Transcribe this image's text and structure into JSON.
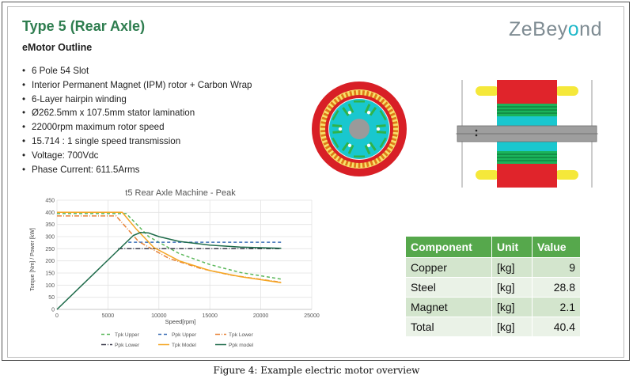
{
  "slide": {
    "title": "Type 5 (Rear Axle)",
    "subtitle": "eMotor Outline",
    "logo_prefix": "ZeBey",
    "logo_o": "o",
    "logo_suffix": "nd",
    "logo_accent": "#1fb8c9",
    "title_color": "#2e7d4f",
    "specs": [
      "6 Pole 54 Slot",
      "Interior Permanent Magnet (IPM) rotor + Carbon Wrap",
      "6-Layer hairpin winding",
      "Ø262.5mm x 107.5mm stator lamination",
      "22000rpm maximum rotor speed",
      "15.714 : 1 single speed transmission",
      "Voltage: 700Vdc",
      "Phase Current: 611.5Arms"
    ]
  },
  "component_table": {
    "headers": [
      "Component",
      "Unit",
      "Value"
    ],
    "rows": [
      {
        "component": "Copper",
        "unit": "[kg]",
        "value": "9"
      },
      {
        "component": "Steel",
        "unit": "[kg]",
        "value": "28.8"
      },
      {
        "component": "Magnet",
        "unit": "[kg]",
        "value": "2.1"
      },
      {
        "component": "Total",
        "unit": "[kg]",
        "value": "40.4"
      }
    ],
    "header_color": "#56a84c"
  },
  "caption": "Figure 4: Example electric motor overview",
  "chart_data": {
    "type": "line",
    "title": "t5 Rear Axle Machine - Peak",
    "xlabel": "Speed[rpm]",
    "ylabel": "Torque [Nm] / Power [kW]",
    "xlim": [
      0,
      25000
    ],
    "ylim": [
      0,
      450
    ],
    "xticks": [
      0,
      5000,
      10000,
      15000,
      20000,
      25000
    ],
    "yticks": [
      0,
      50,
      100,
      150,
      200,
      250,
      300,
      350,
      400,
      450
    ],
    "grid": true,
    "legend_position": "bottom",
    "series": [
      {
        "name": "Tpk Upper",
        "color": "#5cb85c",
        "dash": "4,3",
        "x": [
          0,
          6800,
          9000,
          12000,
          15000,
          18000,
          22000
        ],
        "y": [
          395,
          395,
          300,
          230,
          185,
          152,
          125
        ]
      },
      {
        "name": "Ppk Upper",
        "color": "#3b6fb6",
        "dash": "4,3",
        "x": [
          7000,
          22000
        ],
        "y": [
          277,
          277
        ]
      },
      {
        "name": "Tpk Lower",
        "color": "#e8843a",
        "dash": "6,2,1,2",
        "x": [
          0,
          5800,
          8000,
          11000,
          14000,
          17000,
          22000
        ],
        "y": [
          385,
          385,
          280,
          210,
          170,
          142,
          112
        ]
      },
      {
        "name": "Ppk Lower",
        "color": "#3a3a4a",
        "dash": "6,2,1,2",
        "x": [
          6000,
          22000
        ],
        "y": [
          250,
          250
        ]
      },
      {
        "name": "Tpk Model",
        "color": "#f5a623",
        "dash": "",
        "x": [
          0,
          6400,
          7800,
          9500,
          12000,
          15000,
          18000,
          22000
        ],
        "y": [
          400,
          400,
          330,
          255,
          200,
          160,
          135,
          110
        ]
      },
      {
        "name": "Ppk model",
        "color": "#1e6b4a",
        "dash": "",
        "x": [
          0,
          7500,
          8200,
          9000,
          10000,
          12000,
          15000,
          18000,
          22000
        ],
        "y": [
          0,
          305,
          317,
          315,
          300,
          280,
          265,
          257,
          252
        ]
      }
    ]
  }
}
